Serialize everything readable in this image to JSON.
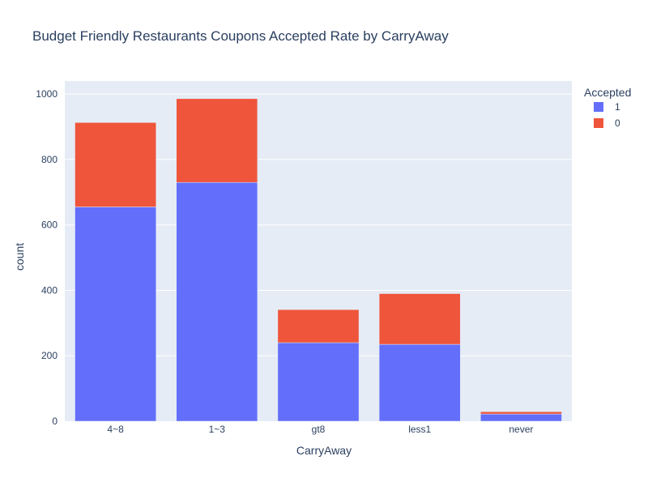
{
  "chart_data": {
    "type": "bar",
    "barmode": "stack",
    "title": "Budget Friendly Restaurants Coupons Accepted Rate by CarryAway",
    "xlabel": "CarryAway",
    "ylabel": "count",
    "categories": [
      "4~8",
      "1~3",
      "gt8",
      "less1",
      "never"
    ],
    "series": [
      {
        "name": "1",
        "values": [
          655,
          730,
          240,
          235,
          22
        ],
        "color": "#636efa"
      },
      {
        "name": "0",
        "values": [
          258,
          256,
          101,
          155,
          7
        ],
        "color": "#ef553b"
      }
    ],
    "ylim": [
      0,
      1040
    ],
    "yticks": [
      0,
      200,
      400,
      600,
      800,
      1000
    ],
    "grid": true,
    "legend": {
      "title": "Accepted",
      "position": "top-right"
    },
    "colors": {
      "plot_bg": "#e5ecf6",
      "grid": "#ffffff",
      "text": "#2a3f5f"
    }
  }
}
